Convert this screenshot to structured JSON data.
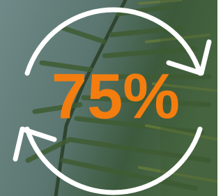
{
  "label": "75%"
}
